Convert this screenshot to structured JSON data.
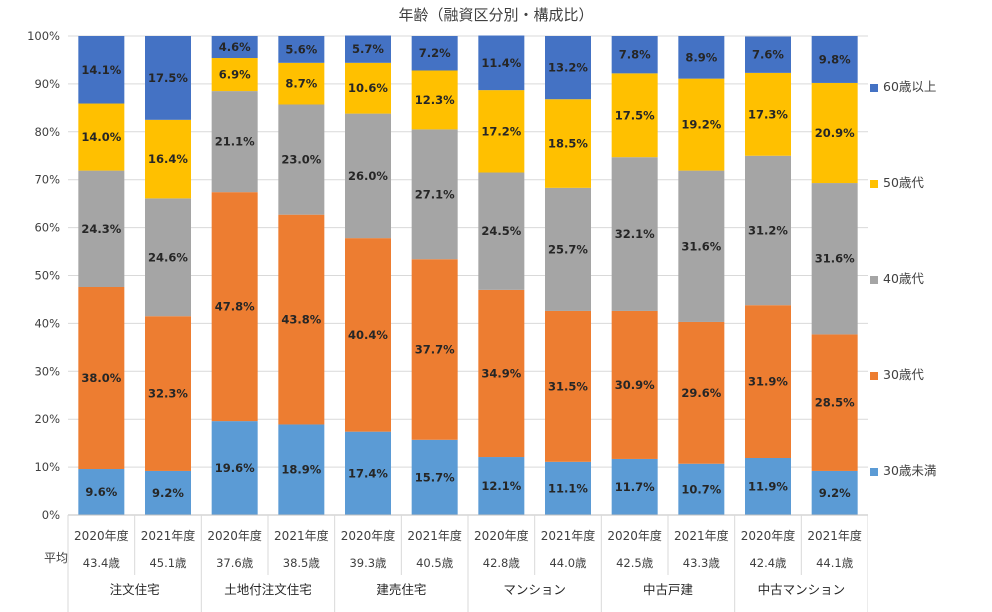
{
  "chart_data": {
    "type": "bar",
    "stacked": true,
    "title": "年齢（融資区分別・構成比）",
    "ylim": [
      0,
      100
    ],
    "y_ticks": [
      "0%",
      "10%",
      "20%",
      "30%",
      "40%",
      "50%",
      "60%",
      "70%",
      "80%",
      "90%",
      "100%"
    ],
    "grid": true,
    "legend_position": "right",
    "avg_row_label": "平均",
    "groups": [
      {
        "name": "注文住宅",
        "categories": [
          "2020年度",
          "2021年度"
        ],
        "averages": [
          "43.4歳",
          "45.1歳"
        ]
      },
      {
        "name": "土地付注文住宅",
        "categories": [
          "2020年度",
          "2021年度"
        ],
        "averages": [
          "37.6歳",
          "38.5歳"
        ]
      },
      {
        "name": "建売住宅",
        "categories": [
          "2020年度",
          "2021年度"
        ],
        "averages": [
          "39.3歳",
          "40.5歳"
        ]
      },
      {
        "name": "マンション",
        "categories": [
          "2020年度",
          "2021年度"
        ],
        "averages": [
          "42.8歳",
          "44.0歳"
        ]
      },
      {
        "name": "中古戸建",
        "categories": [
          "2020年度",
          "2021年度"
        ],
        "averages": [
          "42.5歳",
          "43.3歳"
        ]
      },
      {
        "name": "中古マンション",
        "categories": [
          "2020年度",
          "2021年度"
        ],
        "averages": [
          "42.4歳",
          "44.1歳"
        ]
      }
    ],
    "series": [
      {
        "name": "30歳未満",
        "color": "#5B9BD5",
        "values": [
          9.6,
          9.2,
          19.6,
          18.9,
          17.4,
          15.7,
          12.1,
          11.1,
          11.7,
          10.7,
          11.9,
          9.2
        ]
      },
      {
        "name": "30歳代",
        "color": "#ED7D31",
        "values": [
          38.0,
          32.3,
          47.8,
          43.8,
          40.4,
          37.7,
          34.9,
          31.5,
          30.9,
          29.6,
          31.9,
          28.5
        ]
      },
      {
        "name": "40歳代",
        "color": "#A5A5A5",
        "values": [
          24.3,
          24.6,
          21.1,
          23.0,
          26.0,
          27.1,
          24.5,
          25.7,
          32.1,
          31.6,
          31.2,
          31.6
        ]
      },
      {
        "name": "50歳代",
        "color": "#FFC000",
        "values": [
          14.0,
          16.4,
          6.9,
          8.7,
          10.6,
          12.3,
          17.2,
          18.5,
          17.5,
          19.2,
          17.3,
          20.9
        ]
      },
      {
        "name": "60歳以上",
        "color": "#4472C4",
        "values": [
          14.1,
          17.5,
          4.6,
          5.6,
          5.7,
          7.2,
          11.4,
          13.2,
          7.8,
          8.9,
          7.6,
          9.8
        ]
      }
    ],
    "legend_order": [
      "60歳以上",
      "50歳代",
      "40歳代",
      "30歳代",
      "30歳未満"
    ]
  }
}
